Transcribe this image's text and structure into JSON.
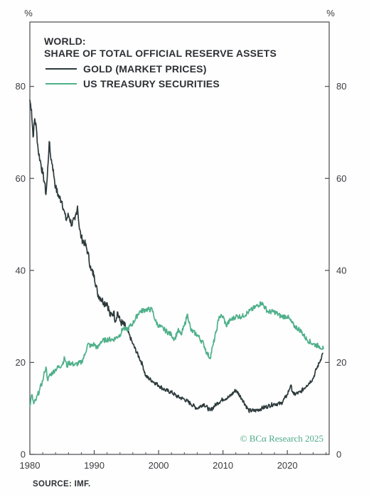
{
  "chart_data": {
    "type": "line",
    "title": "WORLD:",
    "subtitle": "SHARE OF TOTAL OFFICIAL RESERVE ASSETS",
    "y_unit_left": "%",
    "y_unit_right": "%",
    "xlim": [
      1980,
      2026.5
    ],
    "ylim": [
      0,
      94
    ],
    "x_ticks": [
      1980,
      1990,
      2000,
      2010,
      2020
    ],
    "y_ticks": [
      0,
      20,
      40,
      60,
      80
    ],
    "grid": false,
    "legend_position": "top-left",
    "series": [
      {
        "name": "GOLD (MARKET PRICES)",
        "color": "#2d3a3c",
        "points": [
          [
            1980.0,
            77
          ],
          [
            1980.25,
            75
          ],
          [
            1980.5,
            69
          ],
          [
            1980.75,
            73
          ],
          [
            1981.0,
            71
          ],
          [
            1981.3,
            66
          ],
          [
            1981.6,
            64
          ],
          [
            1982.0,
            61
          ],
          [
            1982.3,
            59
          ],
          [
            1982.5,
            56.5
          ],
          [
            1982.7,
            60
          ],
          [
            1983.0,
            68
          ],
          [
            1983.2,
            65
          ],
          [
            1983.5,
            63
          ],
          [
            1983.8,
            60
          ],
          [
            1984.0,
            58
          ],
          [
            1984.5,
            56
          ],
          [
            1985.0,
            55
          ],
          [
            1985.3,
            53
          ],
          [
            1985.6,
            51
          ],
          [
            1986.0,
            52
          ],
          [
            1986.5,
            50
          ],
          [
            1987.0,
            51
          ],
          [
            1987.4,
            54
          ],
          [
            1987.7,
            49
          ],
          [
            1988.0,
            47
          ],
          [
            1988.5,
            46
          ],
          [
            1989.0,
            44
          ],
          [
            1989.5,
            40
          ],
          [
            1990.0,
            39
          ],
          [
            1990.5,
            35
          ],
          [
            1991.0,
            34
          ],
          [
            1991.5,
            33
          ],
          [
            1992.0,
            33
          ],
          [
            1992.5,
            30
          ],
          [
            1993.0,
            31
          ],
          [
            1993.3,
            29
          ],
          [
            1993.6,
            31
          ],
          [
            1994.0,
            29
          ],
          [
            1995.0,
            27.5
          ],
          [
            1996.0,
            24
          ],
          [
            1997.0,
            21
          ],
          [
            1997.5,
            19.5
          ],
          [
            1998.0,
            17
          ],
          [
            1999.0,
            16
          ],
          [
            2000.0,
            15
          ],
          [
            2001.0,
            14
          ],
          [
            2002.0,
            13.5
          ],
          [
            2003.0,
            12.5
          ],
          [
            2004.0,
            12
          ],
          [
            2005.0,
            11
          ],
          [
            2006.0,
            10
          ],
          [
            2007.0,
            11
          ],
          [
            2008.0,
            9.5
          ],
          [
            2009.0,
            11
          ],
          [
            2010.0,
            12
          ],
          [
            2011.0,
            12.5
          ],
          [
            2012.0,
            14
          ],
          [
            2013.0,
            12
          ],
          [
            2014.0,
            9.5
          ],
          [
            2015.0,
            9.5
          ],
          [
            2016.0,
            10
          ],
          [
            2017.0,
            10.5
          ],
          [
            2018.0,
            11
          ],
          [
            2019.0,
            11
          ],
          [
            2020.0,
            13
          ],
          [
            2020.5,
            15
          ],
          [
            2021.0,
            13
          ],
          [
            2022.0,
            13.5
          ],
          [
            2023.0,
            15
          ],
          [
            2024.0,
            16.5
          ],
          [
            2024.5,
            18.5
          ],
          [
            2025.0,
            20
          ],
          [
            2025.5,
            22
          ]
        ]
      },
      {
        "name": "US TREASURY SECURITIES",
        "color": "#4fb08a",
        "points": [
          [
            1980.0,
            10.5
          ],
          [
            1980.3,
            13
          ],
          [
            1980.6,
            11
          ],
          [
            1981.0,
            12
          ],
          [
            1981.5,
            14
          ],
          [
            1982.0,
            16
          ],
          [
            1982.3,
            18
          ],
          [
            1982.5,
            19
          ],
          [
            1982.8,
            16
          ],
          [
            1983.0,
            17
          ],
          [
            1984.0,
            18.5
          ],
          [
            1985.0,
            19.5
          ],
          [
            1985.4,
            21
          ],
          [
            1985.8,
            19
          ],
          [
            1986.0,
            20
          ],
          [
            1987.0,
            19.5
          ],
          [
            1988.0,
            20
          ],
          [
            1988.5,
            21.5
          ],
          [
            1989.0,
            24
          ],
          [
            1989.5,
            23.5
          ],
          [
            1990.0,
            24
          ],
          [
            1990.5,
            23
          ],
          [
            1991.0,
            24.5
          ],
          [
            1992.0,
            25
          ],
          [
            1993.0,
            25
          ],
          [
            1994.0,
            26
          ],
          [
            1994.5,
            27.5
          ],
          [
            1995.0,
            27
          ],
          [
            1996.0,
            28.5
          ],
          [
            1997.0,
            31
          ],
          [
            1998.0,
            31.5
          ],
          [
            1999.0,
            31.5
          ],
          [
            1999.5,
            29
          ],
          [
            2000.0,
            28
          ],
          [
            2001.0,
            27
          ],
          [
            2002.0,
            26
          ],
          [
            2002.5,
            25
          ],
          [
            2003.0,
            27
          ],
          [
            2003.5,
            26
          ],
          [
            2004.0,
            28
          ],
          [
            2004.5,
            30.5
          ],
          [
            2005.0,
            27
          ],
          [
            2006.0,
            26
          ],
          [
            2007.0,
            24
          ],
          [
            2007.5,
            22
          ],
          [
            2008.0,
            21
          ],
          [
            2008.5,
            24
          ],
          [
            2009.0,
            27
          ],
          [
            2009.4,
            30
          ],
          [
            2010.0,
            30
          ],
          [
            2010.5,
            28
          ],
          [
            2011.0,
            29
          ],
          [
            2012.0,
            30
          ],
          [
            2013.0,
            30
          ],
          [
            2014.0,
            31
          ],
          [
            2015.0,
            32
          ],
          [
            2016.0,
            33
          ],
          [
            2017.0,
            31
          ],
          [
            2018.0,
            31
          ],
          [
            2019.0,
            30
          ],
          [
            2020.0,
            30
          ],
          [
            2021.0,
            28
          ],
          [
            2022.0,
            27
          ],
          [
            2023.0,
            25
          ],
          [
            2024.0,
            24
          ],
          [
            2025.0,
            23.5
          ],
          [
            2025.6,
            23
          ]
        ]
      }
    ]
  },
  "source": "SOURCE: IMF.",
  "credit": "© BCα Research 2025"
}
